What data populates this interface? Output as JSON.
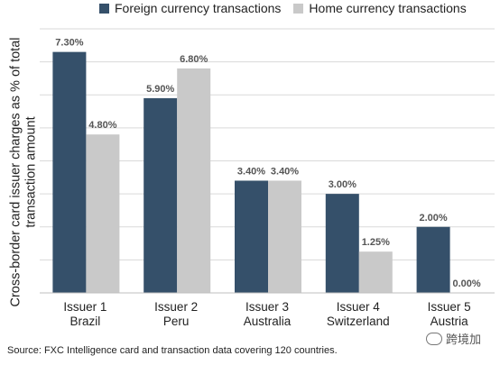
{
  "chart_data": {
    "type": "bar",
    "title": "",
    "ylabel": "Cross-border card issuer charges as % of total transaction amount",
    "ylabel_lines": [
      "Cross-border card issuer charges as % of total",
      "transaction amount"
    ],
    "xlabel": "",
    "ylim": [
      0,
      8
    ],
    "grid": true,
    "legend_position": "top",
    "categories": [
      [
        "Issuer 1",
        "Brazil"
      ],
      [
        "Issuer 2",
        "Peru"
      ],
      [
        "Issuer 3",
        "Australia"
      ],
      [
        "Issuer 4",
        "Switzerland"
      ],
      [
        "Issuer 5",
        "Austria"
      ]
    ],
    "series": [
      {
        "name": "Foreign currency transactions",
        "color": "#35506a",
        "values": [
          7.3,
          5.9,
          3.4,
          3.0,
          2.0
        ],
        "labels": [
          "7.30%",
          "5.90%",
          "3.40%",
          "3.00%",
          "2.00%"
        ]
      },
      {
        "name": "Home currency transactions",
        "color": "#c9c9c9",
        "values": [
          4.8,
          6.8,
          3.4,
          1.25,
          0.0
        ],
        "labels": [
          "4.80%",
          "6.80%",
          "3.40%",
          "1.25%",
          "0.00%"
        ]
      }
    ]
  },
  "source": "Source: FXC Intelligence card and transaction data covering 120 countries.",
  "watermark": {
    "icon": "wechat-icon",
    "text": "跨境加"
  }
}
